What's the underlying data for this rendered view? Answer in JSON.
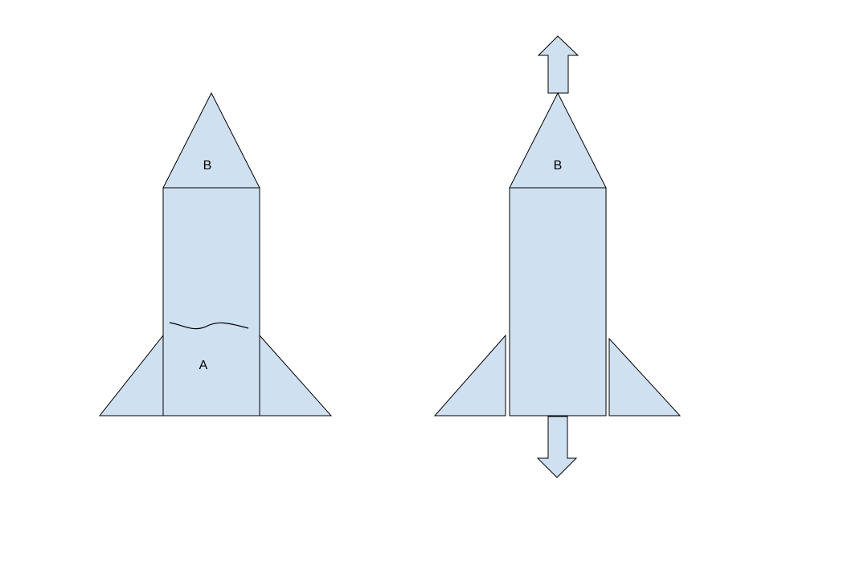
{
  "colors": {
    "shape_fill": "#cfe0f1",
    "stroke": "#000000",
    "background": "#ffffff"
  },
  "left_rocket": {
    "nose_label": "B",
    "body_label": "A"
  },
  "right_rocket": {
    "nose_label": "B"
  }
}
